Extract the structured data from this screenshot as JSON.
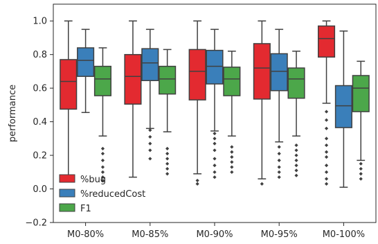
{
  "chart_data": {
    "type": "box",
    "title": "",
    "xlabel": "",
    "ylabel": "performance",
    "ylim": [
      -0.2,
      1.1
    ],
    "yticks": [
      -0.2,
      0.0,
      0.2,
      0.4,
      0.6,
      0.8,
      1.0
    ],
    "ytick_labels": [
      "−0.2",
      "0.0",
      "0.2",
      "0.4",
      "0.6",
      "0.8",
      "1.0"
    ],
    "categories": [
      "M0-80%",
      "M0-85%",
      "M0-90%",
      "M0-95%",
      "M0-100%"
    ],
    "grid": false,
    "legend_position": "lower-left",
    "series": [
      {
        "name": "%bug",
        "color": "#e32a30",
        "boxes": [
          {
            "whislo": 0.07,
            "q1": 0.475,
            "med": 0.64,
            "q3": 0.77,
            "whishi": 1.0,
            "fliers": []
          },
          {
            "whislo": 0.07,
            "q1": 0.505,
            "med": 0.67,
            "q3": 0.8,
            "whishi": 1.0,
            "fliers": []
          },
          {
            "whislo": 0.09,
            "q1": 0.53,
            "med": 0.7,
            "q3": 0.83,
            "whishi": 1.0,
            "fliers": [
              0.05,
              0.03
            ]
          },
          {
            "whislo": 0.06,
            "q1": 0.535,
            "med": 0.72,
            "q3": 0.865,
            "whishi": 1.0,
            "fliers": [
              0.03
            ]
          },
          {
            "whislo": 0.51,
            "q1": 0.785,
            "med": 0.895,
            "q3": 0.97,
            "whishi": 1.0,
            "fliers": [
              0.46,
              0.41,
              0.36,
              0.3,
              0.26,
              0.22,
              0.19,
              0.14,
              0.1,
              0.06,
              0.03
            ]
          }
        ]
      },
      {
        "name": "%reducedCost",
        "color": "#3a7fba",
        "boxes": [
          {
            "whislo": 0.455,
            "q1": 0.67,
            "med": 0.765,
            "q3": 0.84,
            "whishi": 0.95,
            "fliers": []
          },
          {
            "whislo": 0.36,
            "q1": 0.645,
            "med": 0.75,
            "q3": 0.835,
            "whishi": 0.95,
            "fliers": [
              0.35,
              0.31,
              0.27,
              0.23,
              0.18
            ]
          },
          {
            "whislo": 0.345,
            "q1": 0.625,
            "med": 0.73,
            "q3": 0.825,
            "whishi": 0.95,
            "fliers": [
              0.33,
              0.3,
              0.27,
              0.23,
              0.18,
              0.14,
              0.1,
              0.07
            ]
          },
          {
            "whislo": 0.28,
            "q1": 0.585,
            "med": 0.7,
            "q3": 0.805,
            "whishi": 0.95,
            "fliers": [
              0.25,
              0.21,
              0.17,
              0.13,
              0.1,
              0.07
            ]
          },
          {
            "whislo": 0.01,
            "q1": 0.365,
            "med": 0.495,
            "q3": 0.615,
            "whishi": 0.94,
            "fliers": []
          }
        ]
      },
      {
        "name": "F1",
        "color": "#4ca74a",
        "boxes": [
          {
            "whislo": 0.315,
            "q1": 0.555,
            "med": 0.655,
            "q3": 0.73,
            "whishi": 0.84,
            "fliers": [
              0.24,
              0.21,
              0.17,
              0.13,
              0.1,
              0.07,
              0.05
            ]
          },
          {
            "whislo": 0.34,
            "q1": 0.565,
            "med": 0.655,
            "q3": 0.73,
            "whishi": 0.83,
            "fliers": [
              0.24,
              0.21,
              0.18,
              0.15,
              0.12,
              0.09
            ]
          },
          {
            "whislo": 0.315,
            "q1": 0.555,
            "med": 0.655,
            "q3": 0.725,
            "whishi": 0.82,
            "fliers": [
              0.25,
              0.22,
              0.19,
              0.16,
              0.13,
              0.1
            ]
          },
          {
            "whislo": 0.315,
            "q1": 0.54,
            "med": 0.655,
            "q3": 0.72,
            "whishi": 0.82,
            "fliers": [
              0.26,
              0.23,
              0.2,
              0.17,
              0.14,
              0.11,
              0.08
            ]
          },
          {
            "whislo": 0.17,
            "q1": 0.46,
            "med": 0.6,
            "q3": 0.675,
            "whishi": 0.76,
            "fliers": [
              0.15,
              0.12,
              0.09,
              0.06
            ]
          }
        ]
      }
    ]
  }
}
